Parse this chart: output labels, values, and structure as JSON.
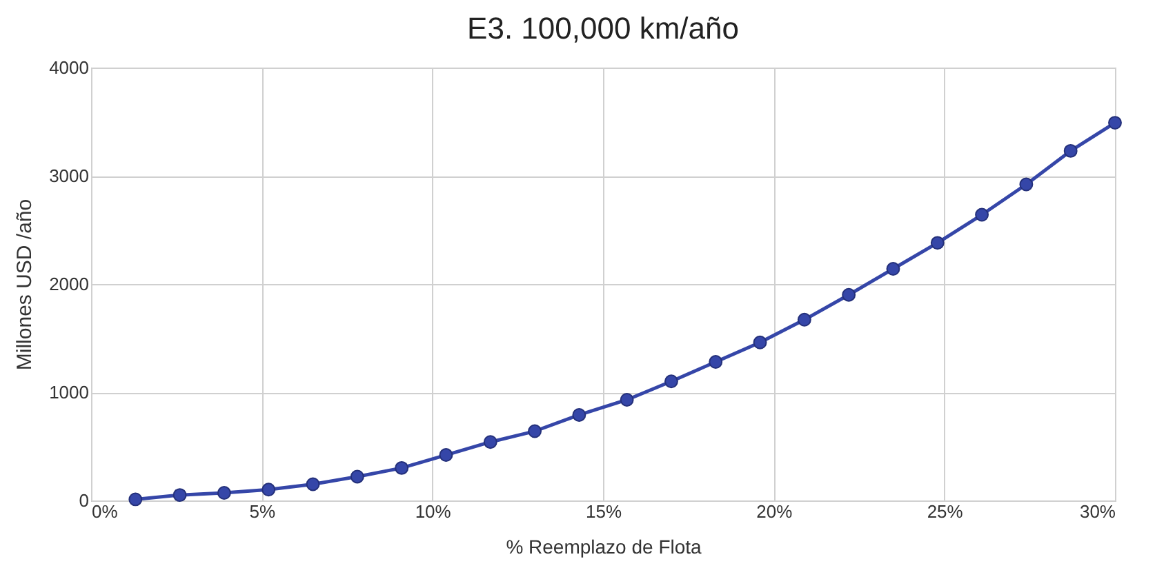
{
  "chart_data": {
    "type": "line",
    "title": "E3. 100,000 km/año",
    "xlabel": "% Reemplazo de Flota",
    "ylabel": "Millones USD /año",
    "x": [
      1.3,
      2.6,
      3.9,
      5.2,
      6.5,
      7.8,
      9.1,
      10.4,
      11.7,
      13.0,
      14.3,
      15.7,
      17.0,
      18.3,
      19.6,
      20.9,
      22.2,
      23.5,
      24.8,
      26.1,
      27.4,
      28.7,
      30.0
    ],
    "series": [
      {
        "color": "#3546a8",
        "values": [
          10,
          50,
          70,
          100,
          150,
          220,
          300,
          420,
          540,
          640,
          790,
          930,
          1100,
          1280,
          1460,
          1670,
          1900,
          2140,
          2380,
          2640,
          2920,
          3230,
          3490
        ]
      }
    ],
    "xlim": [
      0,
      30
    ],
    "xticks": [
      {
        "value": 0,
        "label": "0%"
      },
      {
        "value": 5,
        "label": "5%"
      },
      {
        "value": 10,
        "label": "10%"
      },
      {
        "value": 15,
        "label": "15%"
      },
      {
        "value": 20,
        "label": "20%"
      },
      {
        "value": 25,
        "label": "25%"
      },
      {
        "value": 30,
        "label": "30%"
      }
    ],
    "ylim": [
      0,
      4000
    ],
    "yticks": [
      0,
      1000,
      2000,
      3000,
      4000
    ],
    "grid": true,
    "marker": "circle",
    "line_style": "solid"
  }
}
